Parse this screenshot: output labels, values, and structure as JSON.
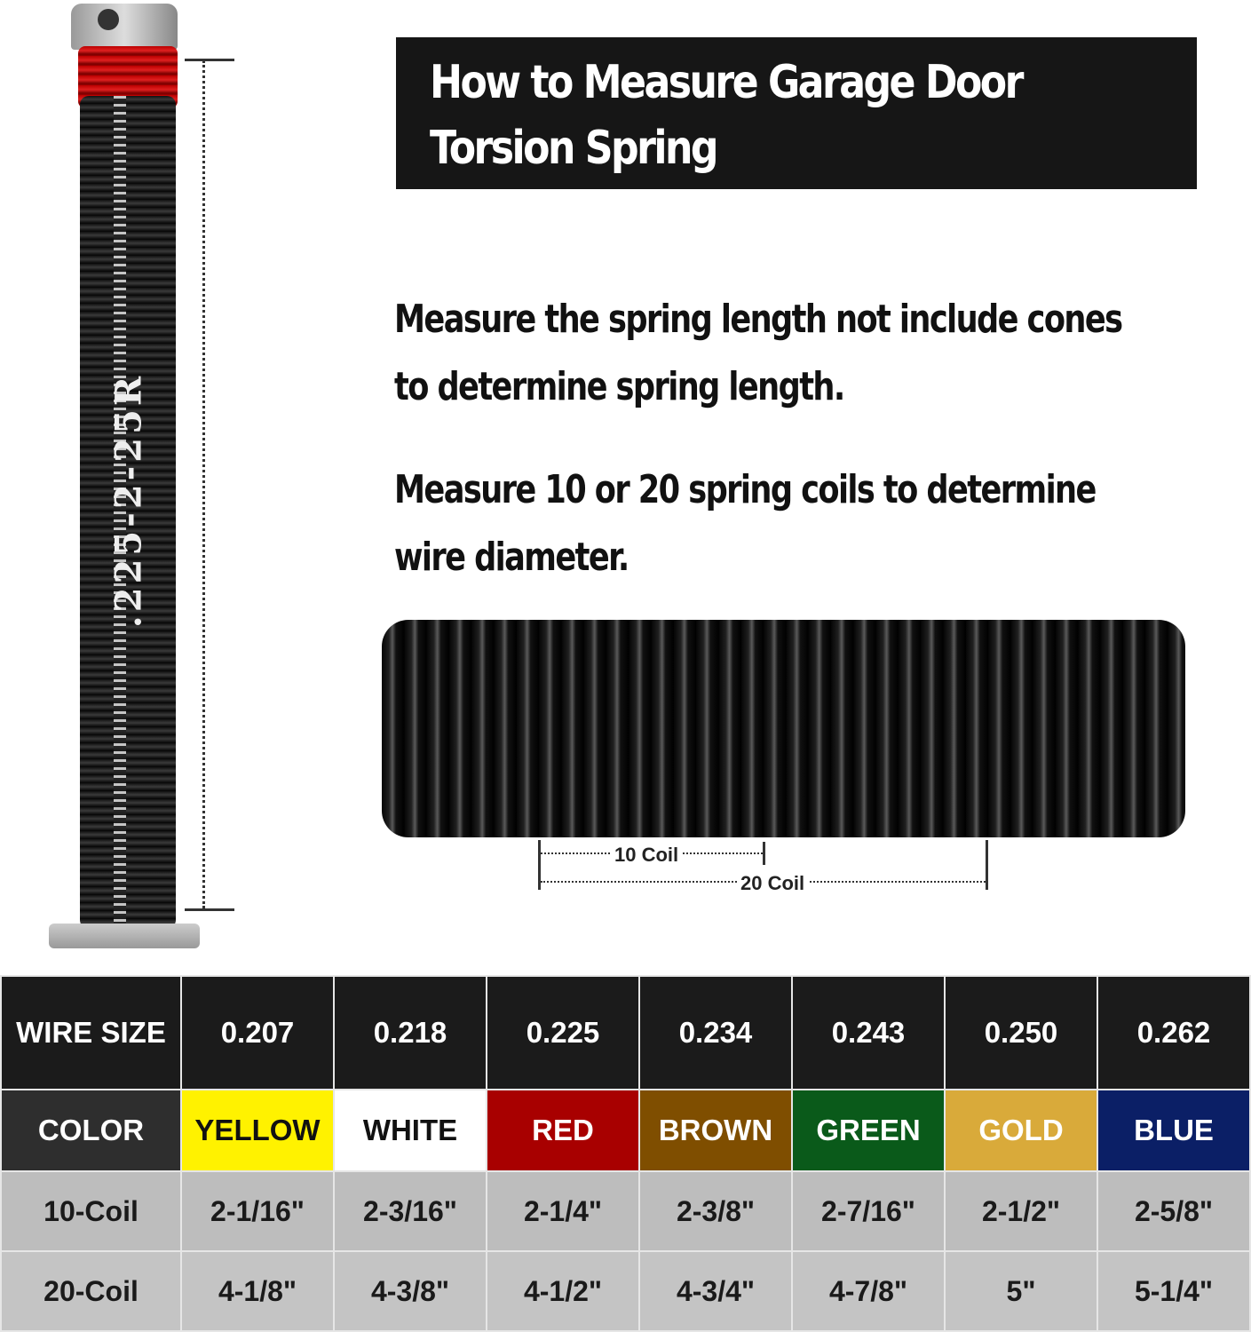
{
  "title": {
    "line1": "How to Measure Garage Door",
    "line2": "Torsion Spring"
  },
  "spring_label": ".225-2-25R",
  "instructions": [
    {
      "line1": "Measure the spring length not include cones",
      "line2": "to determine spring length."
    },
    {
      "line1": "Measure 10 or 20 spring coils to determine",
      "line2": "wire diameter."
    }
  ],
  "measure": {
    "ten": "10 Coil",
    "twenty": "20 Coil"
  },
  "table": {
    "wire_size_label": "WIRE SIZE",
    "color_label": "COLOR",
    "coil10_label": "10-Coil",
    "coil20_label": "20-Coil",
    "columns": [
      {
        "wire": "0.207",
        "color": "YELLOW",
        "bg": "#fff200",
        "fg": "#111111",
        "c10": "2-1/16\"",
        "c20": "4-1/8\""
      },
      {
        "wire": "0.218",
        "color": "WHITE",
        "bg": "#ffffff",
        "fg": "#111111",
        "c10": "2-3/16\"",
        "c20": "4-3/8\""
      },
      {
        "wire": "0.225",
        "color": "RED",
        "bg": "#a80000",
        "fg": "#ffffff",
        "c10": "2-1/4\"",
        "c20": "4-1/2\""
      },
      {
        "wire": "0.234",
        "color": "BROWN",
        "bg": "#7f4e00",
        "fg": "#ffffff",
        "c10": "2-3/8\"",
        "c20": "4-3/4\""
      },
      {
        "wire": "0.243",
        "color": "GREEN",
        "bg": "#0a5a1a",
        "fg": "#ffffff",
        "c10": "2-7/16\"",
        "c20": "4-7/8\""
      },
      {
        "wire": "0.250",
        "color": "GOLD",
        "bg": "#d9aa3a",
        "fg": "#ffffff",
        "c10": "2-1/2\"",
        "c20": "5\""
      },
      {
        "wire": "0.262",
        "color": "BLUE",
        "bg": "#0b1f66",
        "fg": "#ffffff",
        "c10": "2-5/8\"",
        "c20": "5-1/4\""
      }
    ]
  }
}
